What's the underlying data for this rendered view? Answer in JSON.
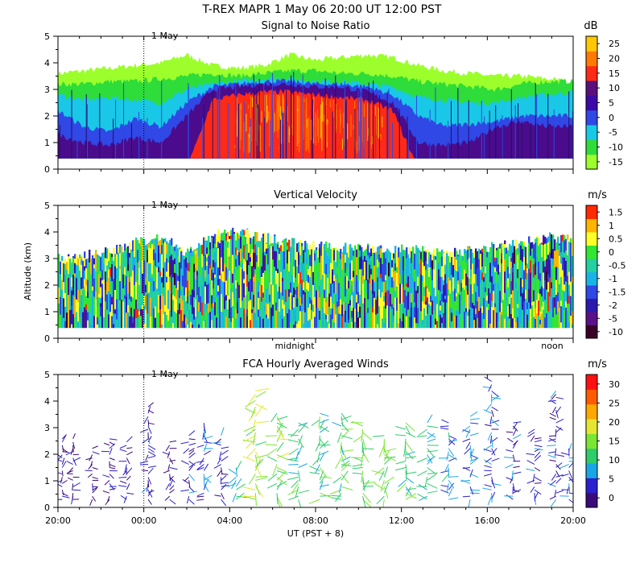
{
  "header": {
    "title": "T-REX   MAPR   1 May 06   20:00 UT   12:00   PST"
  },
  "chart_data": [
    {
      "id": "snr",
      "type": "heatmap",
      "title": "Signal to Noise Ratio",
      "unit": "dB",
      "ylabel": "",
      "ylim": [
        0,
        5
      ],
      "yticks": [
        "0",
        "1",
        "2",
        "3",
        "4",
        "5"
      ],
      "date_marker": {
        "label": "1 May",
        "x_hour": 4
      },
      "colorbar": {
        "ticks": [
          "-15",
          "-10",
          "-5",
          "0",
          "5",
          "10",
          "15",
          "20",
          "25"
        ],
        "colors": [
          "#9cff2c",
          "#2edc3a",
          "#19c8e6",
          "#2f48e6",
          "#3b0aa8",
          "#5a0f7a",
          "#ff2a16",
          "#ff7a00",
          "#ffc800"
        ]
      },
      "layers": [
        {
          "label": "top-fringe",
          "top_km": [
            3.6,
            3.7,
            3.8,
            3.9,
            4.0,
            4.3,
            3.9,
            3.8,
            3.9,
            4.3,
            4.1,
            4.2,
            4.3,
            4.2,
            3.9,
            3.7,
            3.6,
            3.5,
            3.5,
            3.4,
            3.3
          ],
          "color": "#9cff2c"
        },
        {
          "label": "green",
          "top_km": [
            3.2,
            3.2,
            3.3,
            3.3,
            3.4,
            3.5,
            3.6,
            3.5,
            3.6,
            3.7,
            3.7,
            3.6,
            3.6,
            3.5,
            3.3,
            3.2,
            3.1,
            3.0,
            3.2,
            3.3,
            3.3
          ],
          "color": "#2edc3a"
        },
        {
          "label": "cyan",
          "top_km": [
            2.8,
            2.6,
            2.7,
            2.6,
            2.5,
            3.0,
            3.2,
            3.3,
            3.4,
            3.4,
            3.3,
            3.3,
            3.2,
            3.1,
            2.7,
            2.6,
            2.5,
            2.5,
            2.7,
            2.8,
            2.9
          ],
          "color": "#19c8e6"
        },
        {
          "label": "blue",
          "top_km": [
            2.2,
            1.6,
            1.4,
            1.9,
            1.6,
            2.5,
            3.1,
            3.2,
            3.3,
            3.3,
            3.2,
            3.2,
            3.1,
            2.8,
            2.0,
            1.6,
            1.7,
            1.8,
            2.0,
            2.0,
            2.0
          ],
          "color": "#2f48e6"
        },
        {
          "label": "purple",
          "top_km": [
            1.3,
            1.0,
            0.9,
            1.2,
            1.0,
            2.0,
            3.0,
            3.1,
            3.2,
            3.2,
            3.1,
            3.1,
            2.9,
            2.5,
            1.0,
            0.9,
            1.0,
            1.6,
            1.8,
            1.6,
            1.6
          ],
          "color": "#4a0c8c"
        },
        {
          "label": "red",
          "top_km": [
            0,
            0,
            0,
            0,
            0,
            0,
            2.6,
            2.8,
            2.9,
            2.9,
            2.8,
            2.7,
            2.6,
            2.2,
            0,
            0,
            0,
            0,
            0,
            0,
            0
          ],
          "color": "#ff2a16"
        }
      ],
      "floor_km": 0.4
    },
    {
      "id": "velocity",
      "type": "heatmap",
      "title": "Vertical Velocity",
      "unit": "m/s",
      "ylabel": "Altitude (km)",
      "ylim": [
        0,
        5
      ],
      "yticks": [
        "0",
        "1",
        "2",
        "3",
        "4",
        "5"
      ],
      "date_marker": {
        "label": "1 May",
        "x_hour": 4
      },
      "bottom_labels": [
        {
          "text": "midnight",
          "x_hour": 28
        },
        {
          "text": "noon",
          "x_hour": 40
        }
      ],
      "colorbar": {
        "ticks": [
          "-10",
          "-5",
          "-2",
          "-1.5",
          "-1",
          "-0.5",
          "0",
          "0.5",
          "1",
          "1.5"
        ],
        "colors": [
          "#3a0028",
          "#5a1088",
          "#2a1ab0",
          "#2f48e6",
          "#19b4e6",
          "#22d0a0",
          "#32e632",
          "#ffff28",
          "#ffb400",
          "#ff2a00"
        ]
      },
      "top_km": [
        3.0,
        3.1,
        3.3,
        3.6,
        3.8,
        3.2,
        3.9,
        4.0,
        3.8,
        3.6,
        3.5,
        3.4,
        3.4,
        3.3,
        3.4,
        3.2,
        3.3,
        3.5,
        3.6,
        3.8,
        3.7
      ],
      "floor_km": 0.4
    },
    {
      "id": "winds",
      "type": "scatter",
      "title": "FCA Hourly Averaged Winds",
      "unit": "m/s",
      "xlabel": "UT  (PST + 8)",
      "ylim": [
        0,
        5
      ],
      "yticks": [
        "0",
        "1",
        "2",
        "3",
        "4",
        "5"
      ],
      "xticks": [
        "20:00",
        "00:00",
        "04:00",
        "08:00",
        "12:00",
        "16:00",
        "20:00"
      ],
      "x_hours": [
        0,
        4,
        8,
        12,
        16,
        20,
        24
      ],
      "date_marker": {
        "label": "1 May",
        "x_hour": 4
      },
      "colorbar": {
        "ticks": [
          "0",
          "5",
          "10",
          "15",
          "20",
          "25",
          "30"
        ],
        "colors": [
          "#3a0a7a",
          "#2a20d0",
          "#19a6e6",
          "#2ecc6a",
          "#7ae632",
          "#e6e632",
          "#ffa800",
          "#ff5a00",
          "#ff1010"
        ]
      },
      "profiles": [
        {
          "hour": 0.2,
          "top_km": 2.6,
          "speed": 3
        },
        {
          "hour": 0.7,
          "top_km": 2.7,
          "speed": 3
        },
        {
          "hour": 1.6,
          "top_km": 2.3,
          "speed": 2
        },
        {
          "hour": 2.4,
          "top_km": 2.6,
          "speed": 3
        },
        {
          "hour": 3.2,
          "top_km": 2.5,
          "speed": 3
        },
        {
          "hour": 4.2,
          "top_km": 3.9,
          "speed": 4
        },
        {
          "hour": 5.2,
          "top_km": 2.5,
          "speed": 3
        },
        {
          "hour": 6.1,
          "top_km": 2.8,
          "speed": 4
        },
        {
          "hour": 6.8,
          "top_km": 3.2,
          "speed": 6
        },
        {
          "hour": 7.6,
          "top_km": 2.8,
          "speed": 5
        },
        {
          "hour": 8.3,
          "top_km": 1.6,
          "speed": 10
        },
        {
          "hour": 9.2,
          "top_km": 4.5,
          "speed": 16
        },
        {
          "hour": 10.2,
          "top_km": 3.6,
          "speed": 14
        },
        {
          "hour": 11.2,
          "top_km": 3.2,
          "speed": 12
        },
        {
          "hour": 12.2,
          "top_km": 3.6,
          "speed": 11
        },
        {
          "hour": 13.2,
          "top_km": 3.6,
          "speed": 12
        },
        {
          "hour": 14.2,
          "top_km": 3.2,
          "speed": 13
        },
        {
          "hour": 15.2,
          "top_km": 2.8,
          "speed": 14
        },
        {
          "hour": 16.2,
          "top_km": 3.2,
          "speed": 12
        },
        {
          "hour": 17.2,
          "top_km": 3.3,
          "speed": 10
        },
        {
          "hour": 18.2,
          "top_km": 3.2,
          "speed": 8
        },
        {
          "hour": 19.2,
          "top_km": 3.5,
          "speed": 7
        },
        {
          "hour": 20.2,
          "top_km": 4.8,
          "speed": 6
        },
        {
          "hour": 21.2,
          "top_km": 3.3,
          "speed": 5
        },
        {
          "hour": 22.2,
          "top_km": 3.0,
          "speed": 4
        },
        {
          "hour": 23.2,
          "top_km": 4.5,
          "speed": 5
        },
        {
          "hour": 23.8,
          "top_km": 2.3,
          "speed": 6
        }
      ]
    }
  ]
}
